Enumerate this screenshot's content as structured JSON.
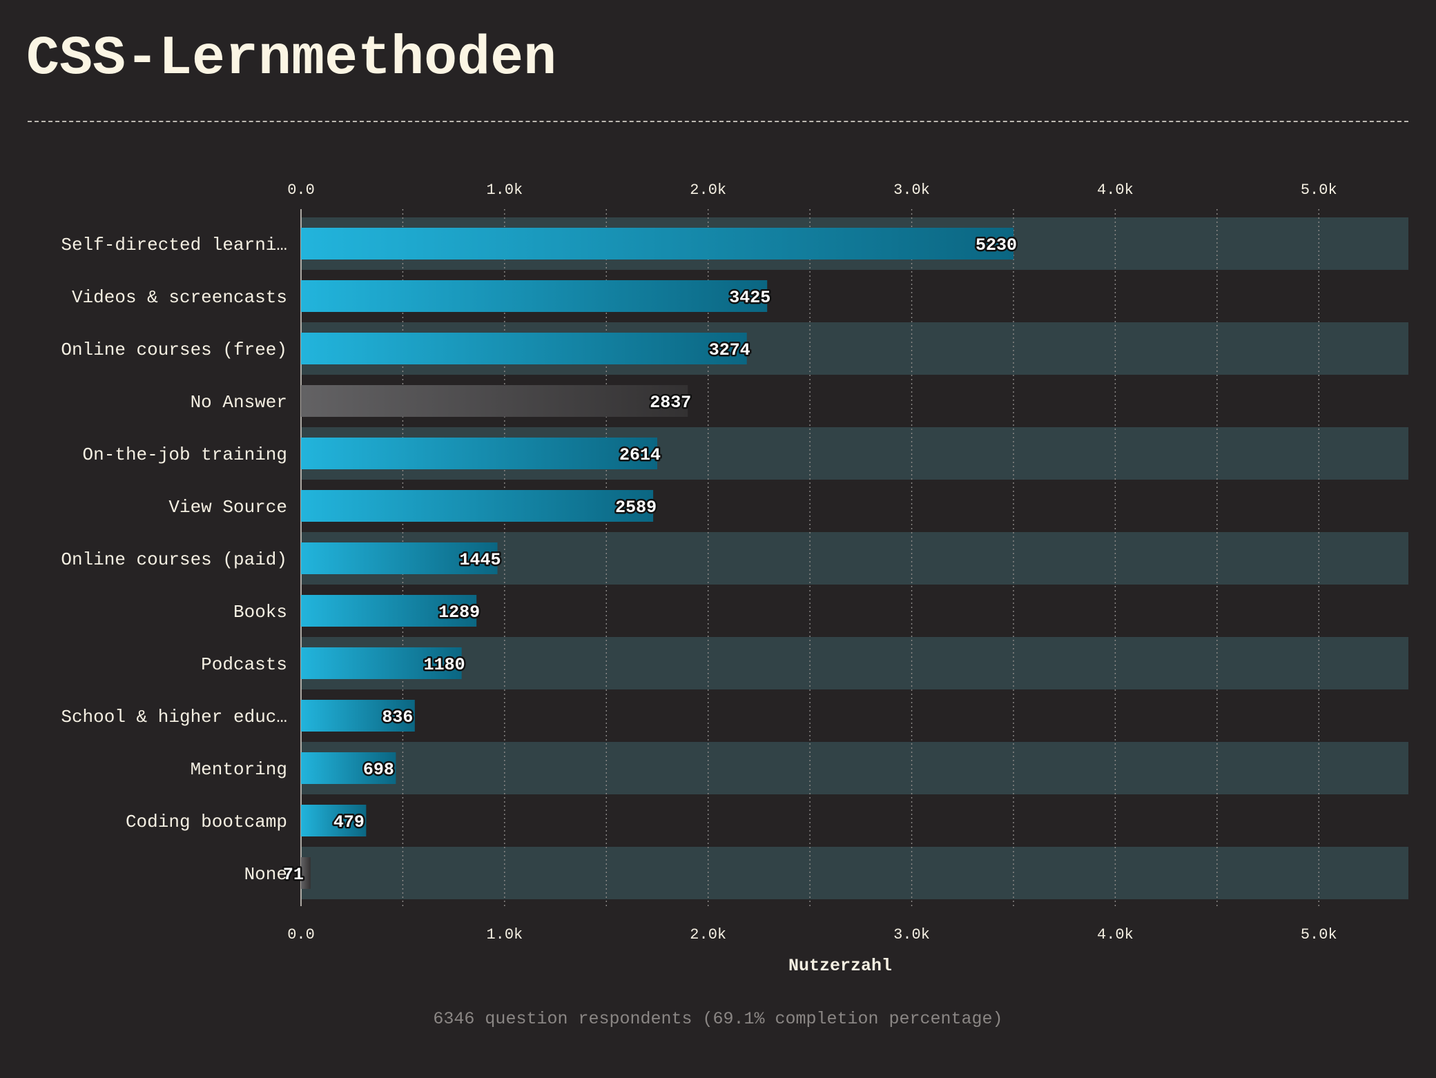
{
  "title": "CSS-Lernmethoden",
  "footnote": "6346 question respondents (69.1% completion percentage)",
  "colors": {
    "background": "#262324",
    "title": "#fbf5e4",
    "row_band": "#324347",
    "bar_start": "#22b4dc",
    "bar_end": "#0b6682",
    "neutral_bar_start": "#636264",
    "neutral_bar_end": "#333132",
    "label_text": "#f4efe2",
    "tick_text": "#f4efe2"
  },
  "chart_data": {
    "type": "bar",
    "orientation": "horizontal",
    "xlabel": "Nutzerzahl",
    "xlim": [
      0,
      5440
    ],
    "x_ticks": [
      0,
      1000,
      2000,
      3000,
      4000,
      5000
    ],
    "x_tick_labels": [
      "0.0",
      "1.0k",
      "2.0k",
      "3.0k",
      "4.0k",
      "5.0k"
    ],
    "grid": true,
    "categories": [
      "Self-directed learni…",
      "Videos & screencasts",
      "Online courses (free)",
      "No Answer",
      "On-the-job training",
      "View Source",
      "Online courses (paid)",
      "Books",
      "Podcasts",
      "School & higher educ…",
      "Mentoring",
      "Coding bootcamp",
      "None"
    ],
    "bar_lengths": [
      3500,
      2290,
      2190,
      1900,
      1750,
      1730,
      965,
      862,
      789,
      559,
      466,
      320,
      47
    ],
    "value_labels": [
      "5230",
      "3425",
      "3274",
      "2837",
      "2614",
      "2589",
      "1445",
      "1289",
      "1180",
      "836",
      "698",
      "479",
      "71"
    ],
    "neutral": [
      false,
      false,
      false,
      true,
      false,
      false,
      false,
      false,
      false,
      false,
      false,
      false,
      true
    ]
  }
}
